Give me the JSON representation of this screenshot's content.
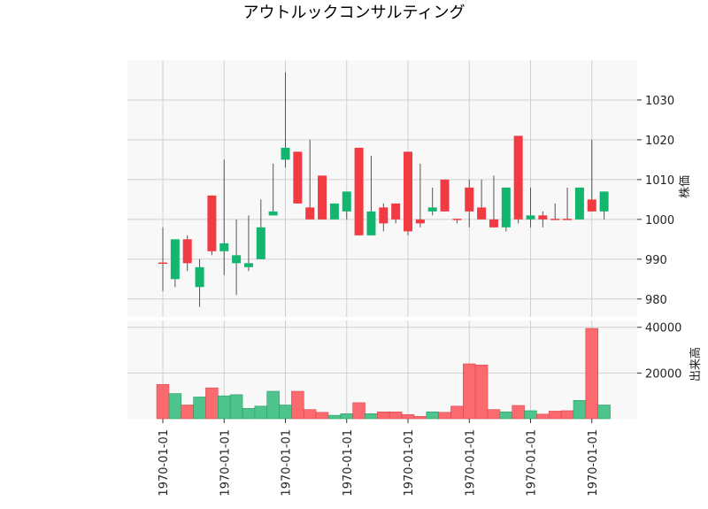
{
  "chart_data": {
    "type": "candlestick",
    "title": "アウトルックコンサルティング",
    "price_axis_label": "株価",
    "volume_axis_label": "出来高",
    "price_ticks": [
      980,
      990,
      1000,
      1010,
      1020,
      1030
    ],
    "price_range": [
      975.5,
      1040
    ],
    "volume_ticks": [
      20000,
      40000
    ],
    "volume_range": [
      0,
      43000
    ],
    "x_tick_labels": [
      "1970-01-01",
      "1970-01-01",
      "1970-01-01",
      "1970-01-01",
      "1970-01-01",
      "1970-01-01",
      "1970-01-01",
      "1970-01-01"
    ],
    "x_tick_indices": [
      0,
      5,
      10,
      15,
      20,
      25,
      30,
      35
    ],
    "grid": true,
    "colors": {
      "up": "#12b66f",
      "down": "#f23a42",
      "up_volume": "#4cc48c",
      "down_volume": "#fb6a6f",
      "wick": "#555555",
      "panel_bg": "#f8f8f8",
      "grid": "#d0d0d0"
    },
    "candles": [
      {
        "open": 989,
        "high": 998,
        "low": 982,
        "close": 989,
        "volume": 15000
      },
      {
        "open": 985,
        "high": 995,
        "low": 983,
        "close": 995,
        "volume": 11000
      },
      {
        "open": 995,
        "high": 996,
        "low": 987,
        "close": 989,
        "volume": 6000
      },
      {
        "open": 983,
        "high": 990,
        "low": 978,
        "close": 988,
        "volume": 9500
      },
      {
        "open": 1006,
        "high": 1006,
        "low": 991,
        "close": 992,
        "volume": 13500
      },
      {
        "open": 992,
        "high": 1015,
        "low": 986,
        "close": 994,
        "volume": 10000
      },
      {
        "open": 989,
        "high": 1000,
        "low": 981,
        "close": 991,
        "volume": 10500
      },
      {
        "open": 988,
        "high": 1001,
        "low": 987,
        "close": 989,
        "volume": 4500
      },
      {
        "open": 990,
        "high": 1005,
        "low": 990,
        "close": 998,
        "volume": 5500
      },
      {
        "open": 1001,
        "high": 1014,
        "low": 1001,
        "close": 1002,
        "volume": 12000
      },
      {
        "open": 1015,
        "high": 1037,
        "low": 1013,
        "close": 1018,
        "volume": 6000
      },
      {
        "open": 1017,
        "high": 1017,
        "low": 1004,
        "close": 1004,
        "volume": 12000
      },
      {
        "open": 1003,
        "high": 1020,
        "low": 1000,
        "close": 1000,
        "volume": 4000
      },
      {
        "open": 1011,
        "high": 1011,
        "low": 1000,
        "close": 1000,
        "volume": 2800
      },
      {
        "open": 1000,
        "high": 1004,
        "low": 1000,
        "close": 1004,
        "volume": 1500
      },
      {
        "open": 1002,
        "high": 1007,
        "low": 1000,
        "close": 1007,
        "volume": 2200
      },
      {
        "open": 1018,
        "high": 1018,
        "low": 996,
        "close": 996,
        "volume": 7000
      },
      {
        "open": 996,
        "high": 1016,
        "low": 996,
        "close": 1002,
        "volume": 2200
      },
      {
        "open": 1003,
        "high": 1004,
        "low": 997,
        "close": 999,
        "volume": 3000
      },
      {
        "open": 1004,
        "high": 1004,
        "low": 999,
        "close": 1000,
        "volume": 3000
      },
      {
        "open": 1017,
        "high": 1017,
        "low": 996,
        "close": 997,
        "volume": 1800
      },
      {
        "open": 1000,
        "high": 1014,
        "low": 998,
        "close": 999,
        "volume": 1000
      },
      {
        "open": 1002,
        "high": 1008,
        "low": 1001,
        "close": 1003,
        "volume": 3000
      },
      {
        "open": 1010,
        "high": 1010,
        "low": 1002,
        "close": 1002,
        "volume": 2800
      },
      {
        "open": 1000,
        "high": 1000,
        "low": 999,
        "close": 1000,
        "volume": 5500
      },
      {
        "open": 1008,
        "high": 1010,
        "low": 998,
        "close": 1002,
        "volume": 24000
      },
      {
        "open": 1003,
        "high": 1010,
        "low": 1000,
        "close": 1000,
        "volume": 23500
      },
      {
        "open": 1000,
        "high": 1011,
        "low": 998,
        "close": 998,
        "volume": 4000
      },
      {
        "open": 998,
        "high": 1008,
        "low": 997,
        "close": 1008,
        "volume": 3000
      },
      {
        "open": 1021,
        "high": 1021,
        "low": 999,
        "close": 1000,
        "volume": 5800
      },
      {
        "open": 1000,
        "high": 1008,
        "low": 998,
        "close": 1001,
        "volume": 3500
      },
      {
        "open": 1001,
        "high": 1002,
        "low": 998,
        "close": 1000,
        "volume": 2000
      },
      {
        "open": 1000,
        "high": 1004,
        "low": 1000,
        "close": 1000,
        "volume": 3300
      },
      {
        "open": 1000,
        "high": 1008,
        "low": 1000,
        "close": 1000,
        "volume": 3500
      },
      {
        "open": 1000,
        "high": 1008,
        "low": 1000,
        "close": 1008,
        "volume": 8000
      },
      {
        "open": 1005,
        "high": 1020,
        "low": 1002,
        "close": 1002,
        "volume": 39500
      },
      {
        "open": 1002,
        "high": 1007,
        "low": 1000,
        "close": 1007,
        "volume": 6000
      }
    ]
  }
}
